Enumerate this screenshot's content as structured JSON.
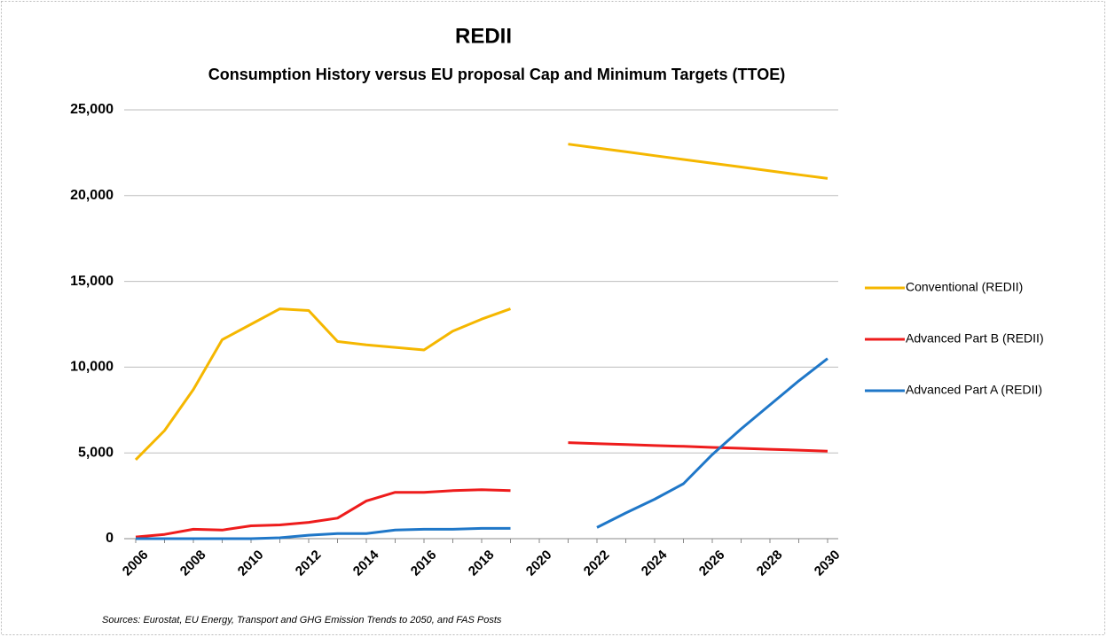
{
  "chart_data": {
    "type": "line",
    "title": "REDII",
    "subtitle": "Consumption History versus EU proposal Cap and Minimum Targets (TTOE)",
    "source": "Sources: Eurostat, EU Energy, Transport and GHG Emission Trends to 2050, and FAS Posts",
    "categories": [
      "2006",
      null,
      "2008",
      null,
      "2010",
      null,
      "2012",
      null,
      "2014",
      null,
      "2016",
      null,
      "2018",
      null,
      "2020",
      null,
      "2022",
      null,
      "2024",
      null,
      "2026",
      null,
      "2028",
      null,
      "2030"
    ],
    "series": [
      {
        "name": "Conventional (REDII)",
        "color": "#f5b700",
        "values": [
          4600,
          6300,
          8700,
          11600,
          12500,
          13400,
          13300,
          11500,
          11300,
          11150,
          11000,
          12100,
          12800,
          13400,
          null,
          23000,
          22780,
          22560,
          22330,
          22110,
          21890,
          21670,
          21440,
          21220,
          21000
        ]
      },
      {
        "name": "Advanced Part B (REDII)",
        "color": "#ee1c1c",
        "values": [
          100,
          250,
          550,
          500,
          750,
          800,
          950,
          1200,
          2200,
          2700,
          2700,
          2800,
          2850,
          2800,
          null,
          5600,
          5540,
          5490,
          5430,
          5380,
          5320,
          5270,
          5210,
          5160,
          5100
        ]
      },
      {
        "name": "Advanced Part A (REDII)",
        "color": "#1f77c8",
        "values": [
          0,
          0,
          0,
          0,
          0,
          50,
          200,
          300,
          300,
          500,
          550,
          550,
          600,
          600,
          null,
          null,
          650,
          1500,
          2300,
          3200,
          4900,
          6400,
          7800,
          9200,
          10500
        ]
      }
    ],
    "ylim": [
      0,
      25000
    ],
    "yticks": [
      {
        "value": 0,
        "label": "0"
      },
      {
        "value": 5000,
        "label": "5,000"
      },
      {
        "value": 10000,
        "label": "10,000"
      },
      {
        "value": 15000,
        "label": "15,000"
      },
      {
        "value": 20000,
        "label": "20,000"
      },
      {
        "value": 25000,
        "label": "25,000"
      }
    ],
    "grid": true,
    "legend": "right"
  }
}
